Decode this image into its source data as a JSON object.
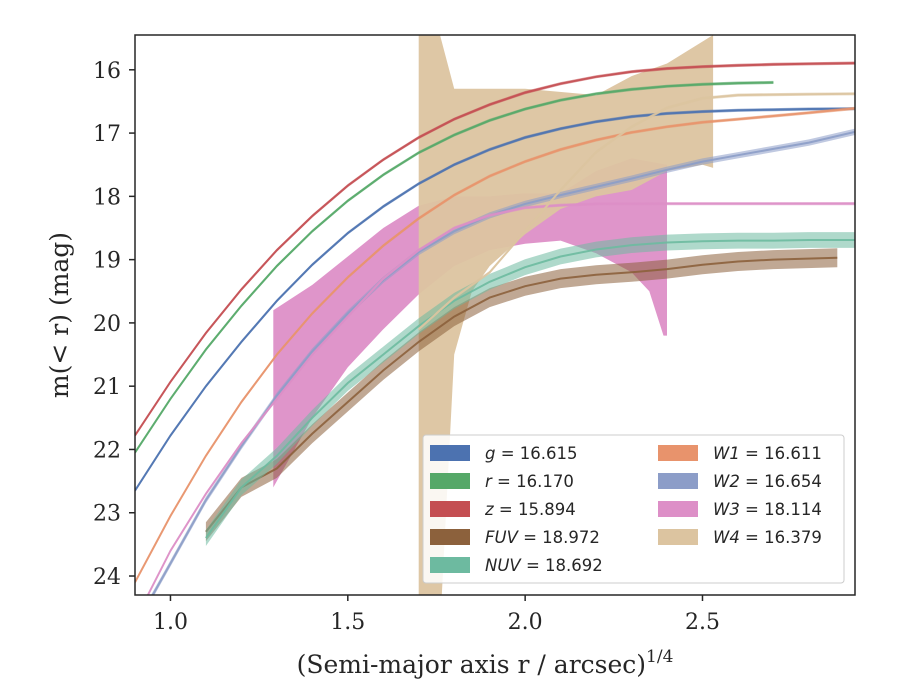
{
  "chart_data": {
    "type": "line",
    "xlabel": "(Semi-major axis r / arcsec)",
    "xlabel_exponent": "1/4",
    "ylabel": "m(< r) (mag)",
    "xlim": [
      0.9,
      2.93
    ],
    "ylim": [
      24.3,
      15.45
    ],
    "y_inverted": true,
    "grid": false,
    "legend_position": "lower-right",
    "x_ticks": [
      1.0,
      1.5,
      2.0,
      2.5
    ],
    "x_tick_labels": [
      "1.0",
      "1.5",
      "2.0",
      "2.5"
    ],
    "y_ticks": [
      16,
      17,
      18,
      19,
      20,
      21,
      22,
      23,
      24
    ],
    "y_tick_labels": [
      "16",
      "17",
      "18",
      "19",
      "20",
      "21",
      "22",
      "23",
      "24"
    ],
    "series": [
      {
        "key": "g",
        "name": "g = 16.615",
        "color": "#4c72b0",
        "width": 0.05,
        "points": [
          [
            0.9,
            22.65
          ],
          [
            1.0,
            21.78
          ],
          [
            1.1,
            21.0
          ],
          [
            1.2,
            20.3
          ],
          [
            1.3,
            19.65
          ],
          [
            1.4,
            19.08
          ],
          [
            1.5,
            18.58
          ],
          [
            1.6,
            18.16
          ],
          [
            1.7,
            17.8
          ],
          [
            1.8,
            17.5
          ],
          [
            1.9,
            17.26
          ],
          [
            2.0,
            17.07
          ],
          [
            2.1,
            16.93
          ],
          [
            2.2,
            16.82
          ],
          [
            2.3,
            16.74
          ],
          [
            2.4,
            16.69
          ],
          [
            2.5,
            16.66
          ],
          [
            2.6,
            16.64
          ],
          [
            2.7,
            16.63
          ],
          [
            2.8,
            16.62
          ],
          [
            2.93,
            16.615
          ]
        ]
      },
      {
        "key": "r",
        "name": "r = 16.170",
        "color": "#55a868",
        "width": 0.05,
        "points": [
          [
            0.9,
            22.05
          ],
          [
            1.0,
            21.2
          ],
          [
            1.1,
            20.42
          ],
          [
            1.2,
            19.73
          ],
          [
            1.3,
            19.1
          ],
          [
            1.4,
            18.55
          ],
          [
            1.5,
            18.07
          ],
          [
            1.6,
            17.66
          ],
          [
            1.7,
            17.31
          ],
          [
            1.8,
            17.03
          ],
          [
            1.9,
            16.8
          ],
          [
            2.0,
            16.62
          ],
          [
            2.1,
            16.48
          ],
          [
            2.2,
            16.38
          ],
          [
            2.3,
            16.31
          ],
          [
            2.4,
            16.26
          ],
          [
            2.5,
            16.23
          ],
          [
            2.6,
            16.21
          ],
          [
            2.7,
            16.2
          ]
        ]
      },
      {
        "key": "z",
        "name": "z = 15.894",
        "color": "#c44e52",
        "width": 0.05,
        "points": [
          [
            0.9,
            21.78
          ],
          [
            1.0,
            20.93
          ],
          [
            1.1,
            20.16
          ],
          [
            1.2,
            19.47
          ],
          [
            1.3,
            18.85
          ],
          [
            1.4,
            18.31
          ],
          [
            1.5,
            17.83
          ],
          [
            1.6,
            17.42
          ],
          [
            1.7,
            17.07
          ],
          [
            1.8,
            16.78
          ],
          [
            1.9,
            16.55
          ],
          [
            2.0,
            16.36
          ],
          [
            2.1,
            16.22
          ],
          [
            2.2,
            16.11
          ],
          [
            2.3,
            16.03
          ],
          [
            2.4,
            15.98
          ],
          [
            2.5,
            15.95
          ],
          [
            2.6,
            15.93
          ],
          [
            2.7,
            15.915
          ],
          [
            2.8,
            15.905
          ],
          [
            2.93,
            15.894
          ]
        ]
      },
      {
        "key": "fuv",
        "name": "FUV = 18.972",
        "color": "#8c613c",
        "width": 0.3,
        "points": [
          [
            1.1,
            23.3
          ],
          [
            1.2,
            22.6
          ],
          [
            1.3,
            22.3
          ],
          [
            1.4,
            21.75
          ],
          [
            1.5,
            21.25
          ],
          [
            1.6,
            20.75
          ],
          [
            1.7,
            20.3
          ],
          [
            1.8,
            19.9
          ],
          [
            1.9,
            19.6
          ],
          [
            2.0,
            19.42
          ],
          [
            2.1,
            19.3
          ],
          [
            2.2,
            19.24
          ],
          [
            2.3,
            19.2
          ],
          [
            2.4,
            19.15
          ],
          [
            2.5,
            19.08
          ],
          [
            2.6,
            19.03
          ],
          [
            2.7,
            19.0
          ],
          [
            2.88,
            18.97
          ]
        ]
      },
      {
        "key": "nuv",
        "name": "NUV = 18.692",
        "color": "#6dbaa0",
        "width": 0.25,
        "points": [
          [
            1.1,
            23.4
          ],
          [
            1.2,
            22.6
          ],
          [
            1.3,
            22.1
          ],
          [
            1.4,
            21.5
          ],
          [
            1.5,
            20.95
          ],
          [
            1.6,
            20.5
          ],
          [
            1.7,
            20.05
          ],
          [
            1.8,
            19.65
          ],
          [
            1.9,
            19.35
          ],
          [
            2.0,
            19.12
          ],
          [
            2.1,
            18.95
          ],
          [
            2.2,
            18.84
          ],
          [
            2.3,
            18.77
          ],
          [
            2.4,
            18.73
          ],
          [
            2.5,
            18.71
          ],
          [
            2.6,
            18.7
          ],
          [
            2.7,
            18.7
          ],
          [
            2.8,
            18.69
          ],
          [
            2.93,
            18.69
          ]
        ]
      },
      {
        "key": "w1",
        "name": "W1 = 16.611",
        "color": "#e8936c",
        "width": 0.05,
        "points": [
          [
            0.9,
            24.1
          ],
          [
            1.0,
            23.05
          ],
          [
            1.1,
            22.1
          ],
          [
            1.2,
            21.25
          ],
          [
            1.3,
            20.5
          ],
          [
            1.4,
            19.85
          ],
          [
            1.5,
            19.28
          ],
          [
            1.6,
            18.78
          ],
          [
            1.7,
            18.35
          ],
          [
            1.8,
            17.98
          ],
          [
            1.9,
            17.68
          ],
          [
            2.0,
            17.45
          ],
          [
            2.1,
            17.26
          ],
          [
            2.2,
            17.11
          ],
          [
            2.3,
            16.99
          ],
          [
            2.4,
            16.9
          ],
          [
            2.5,
            16.83
          ],
          [
            2.6,
            16.78
          ],
          [
            2.7,
            16.73
          ],
          [
            2.8,
            16.68
          ],
          [
            2.93,
            16.61
          ]
        ]
      },
      {
        "key": "w2",
        "name": "W2 = 16.654",
        "color": "#8c9dc8",
        "width": 0.1,
        "points": [
          [
            0.9,
            24.8
          ],
          [
            1.0,
            23.8
          ],
          [
            1.1,
            22.8
          ],
          [
            1.2,
            21.95
          ],
          [
            1.3,
            21.15
          ],
          [
            1.4,
            20.45
          ],
          [
            1.5,
            19.85
          ],
          [
            1.6,
            19.32
          ],
          [
            1.7,
            18.88
          ],
          [
            1.8,
            18.55
          ],
          [
            1.9,
            18.3
          ],
          [
            2.0,
            18.12
          ],
          [
            2.1,
            17.98
          ],
          [
            2.2,
            17.85
          ],
          [
            2.3,
            17.72
          ],
          [
            2.4,
            17.58
          ],
          [
            2.5,
            17.45
          ],
          [
            2.6,
            17.35
          ],
          [
            2.7,
            17.25
          ],
          [
            2.8,
            17.15
          ],
          [
            2.93,
            16.98
          ]
        ]
      },
      {
        "key": "w3",
        "name": "W3 = 18.114",
        "color": "#dd8fc7",
        "width": 0.05,
        "points": [
          [
            0.9,
            24.7
          ],
          [
            1.0,
            23.6
          ],
          [
            1.1,
            22.7
          ],
          [
            1.2,
            21.9
          ],
          [
            1.3,
            21.2
          ],
          [
            1.4,
            20.5
          ],
          [
            1.5,
            19.9
          ],
          [
            1.6,
            19.3
          ],
          [
            1.7,
            18.85
          ],
          [
            1.8,
            18.5
          ],
          [
            1.9,
            18.3
          ],
          [
            2.0,
            18.18
          ],
          [
            2.1,
            18.14
          ],
          [
            2.2,
            18.12
          ],
          [
            2.4,
            18.115
          ],
          [
            2.6,
            18.115
          ],
          [
            2.93,
            18.114
          ]
        ]
      },
      {
        "key": "w4",
        "name": "W4 = 16.379",
        "color": "#dcc4a0",
        "width": 0.05,
        "points": [
          [
            1.7,
            20.1
          ],
          [
            1.8,
            19.6
          ],
          [
            1.9,
            19.2
          ],
          [
            2.0,
            18.55
          ],
          [
            2.1,
            17.9
          ],
          [
            2.2,
            17.3
          ],
          [
            2.3,
            16.9
          ],
          [
            2.4,
            16.6
          ],
          [
            2.5,
            16.45
          ],
          [
            2.6,
            16.4
          ],
          [
            2.8,
            16.385
          ],
          [
            2.93,
            16.379
          ]
        ]
      }
    ],
    "bands": [
      {
        "key": "w3-band",
        "color": "#dd8fc7",
        "upper": [
          [
            1.29,
            19.8
          ],
          [
            1.4,
            19.4
          ],
          [
            1.5,
            18.95
          ],
          [
            1.6,
            18.5
          ],
          [
            1.7,
            18.15
          ],
          [
            1.8,
            18.0
          ],
          [
            1.9,
            18.0
          ],
          [
            2.0,
            17.95
          ],
          [
            2.1,
            17.95
          ],
          [
            2.2,
            17.6
          ],
          [
            2.3,
            17.4
          ],
          [
            2.4,
            17.5
          ]
        ],
        "lower": [
          [
            1.29,
            22.6
          ],
          [
            1.4,
            21.5
          ],
          [
            1.5,
            20.7
          ],
          [
            1.6,
            20.1
          ],
          [
            1.7,
            19.55
          ],
          [
            1.8,
            19.1
          ],
          [
            1.9,
            18.85
          ],
          [
            2.0,
            18.75
          ],
          [
            2.1,
            18.7
          ],
          [
            2.2,
            18.9
          ],
          [
            2.3,
            19.2
          ],
          [
            2.35,
            19.5
          ],
          [
            2.39,
            20.2
          ],
          [
            2.4,
            20.2
          ]
        ]
      },
      {
        "key": "w4-band",
        "color": "#dcc4a0",
        "upper": [
          [
            1.7,
            15.45
          ],
          [
            1.76,
            15.45
          ],
          [
            1.8,
            16.3
          ],
          [
            2.0,
            16.3
          ],
          [
            2.2,
            16.4
          ],
          [
            2.3,
            16.1
          ],
          [
            2.4,
            15.9
          ],
          [
            2.53,
            15.45
          ]
        ],
        "lower": [
          [
            1.7,
            24.3
          ],
          [
            1.765,
            24.3
          ],
          [
            1.8,
            20.5
          ],
          [
            1.85,
            19.5
          ],
          [
            1.9,
            19.1
          ],
          [
            2.0,
            18.6
          ],
          [
            2.1,
            18.2
          ],
          [
            2.2,
            18.0
          ],
          [
            2.3,
            17.9
          ],
          [
            2.4,
            17.6
          ],
          [
            2.45,
            17.55
          ],
          [
            2.5,
            17.5
          ],
          [
            2.53,
            17.55
          ]
        ]
      }
    ]
  },
  "legend": {
    "left": [
      {
        "key": "g",
        "label": "g = 16.615",
        "color": "#4c72b0"
      },
      {
        "key": "r",
        "label": "r = 16.170",
        "color": "#55a868"
      },
      {
        "key": "z",
        "label": "z = 15.894",
        "color": "#c44e52"
      },
      {
        "key": "fuv",
        "label": "FUV = 18.972",
        "color": "#8c613c"
      },
      {
        "key": "nuv",
        "label": "NUV = 18.692",
        "color": "#6dbaa0"
      }
    ],
    "right": [
      {
        "key": "w1",
        "label": "W1 = 16.611",
        "color": "#e8936c"
      },
      {
        "key": "w2",
        "label": "W2 = 16.654",
        "color": "#8c9dc8"
      },
      {
        "key": "w3",
        "label": "W3 = 18.114",
        "color": "#dd8fc7"
      },
      {
        "key": "w4",
        "label": "W4 = 16.379",
        "color": "#dcc4a0"
      }
    ]
  }
}
